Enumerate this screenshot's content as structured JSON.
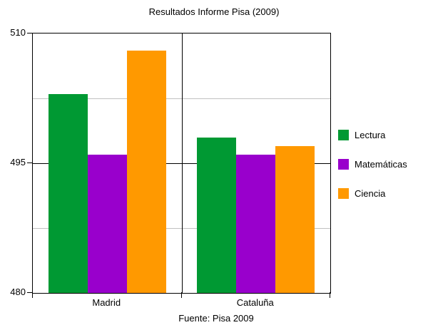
{
  "chart": {
    "title": "Resultados Informe Pisa (2009)",
    "caption": "Fuente: Pisa 2009"
  },
  "chart_data": {
    "type": "bar",
    "title": "Resultados Informe Pisa (2009)",
    "categories": [
      "Madrid",
      "Cataluña"
    ],
    "series": [
      {
        "name": "Lectura",
        "color": "#009933",
        "values": [
          503,
          498
        ]
      },
      {
        "name": "Matemáticas",
        "color": "#9900CC",
        "values": [
          496,
          496
        ]
      },
      {
        "name": "Ciencia",
        "color": "#FF9900",
        "values": [
          508,
          497
        ]
      }
    ],
    "xlabel": "",
    "ylabel": "",
    "ylim": [
      480,
      510
    ],
    "yticks": [
      480,
      495,
      510
    ],
    "minor_gridlines": [
      487.5,
      502.5
    ],
    "major_gridlines": [
      495
    ],
    "grid": true,
    "legend_position": "right",
    "source": "Fuente: Pisa 2009",
    "colors": {
      "axis": "#000000",
      "major_grid": "#000000",
      "minor_grid": "#c0c0c0",
      "text": "#000000",
      "background": "#ffffff"
    }
  }
}
